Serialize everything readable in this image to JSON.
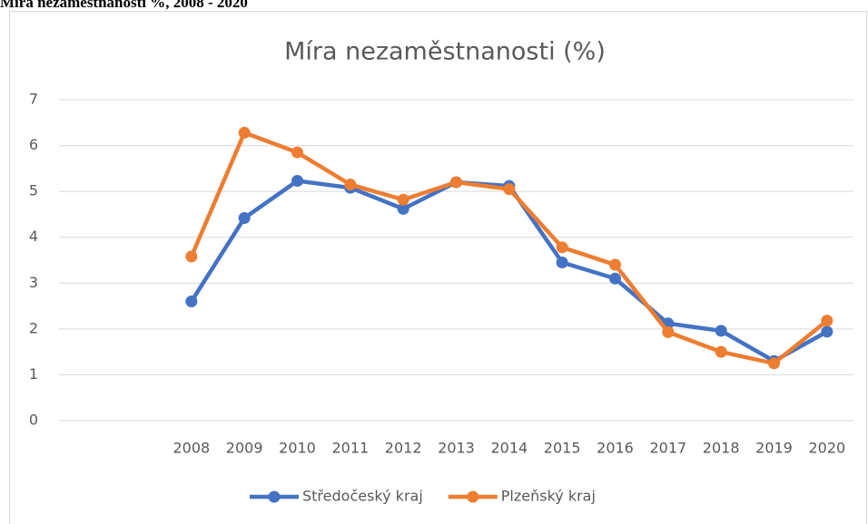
{
  "caption": "Míra nezaměstnanosti %, 2008 - 2020",
  "chart_data": {
    "type": "line",
    "title": "Míra nezaměstnanosti (%)",
    "categories": [
      null,
      null,
      "2008",
      "2009",
      "2010",
      "2011",
      "2012",
      "2013",
      "2014",
      "2015",
      "2016",
      "2017",
      "2018",
      "2019",
      "2020"
    ],
    "series": [
      {
        "name": "Středočeský kraj",
        "color": "#4472c4",
        "values": [
          null,
          null,
          2.6,
          4.42,
          5.23,
          5.08,
          4.62,
          5.2,
          5.12,
          3.45,
          3.1,
          2.12,
          1.96,
          1.3,
          1.94
        ]
      },
      {
        "name": "Plzeňský kraj",
        "color": "#ed7d31",
        "values": [
          null,
          null,
          3.58,
          6.28,
          5.85,
          5.15,
          4.82,
          5.2,
          5.05,
          3.78,
          3.4,
          1.93,
          1.5,
          1.25,
          2.18
        ]
      }
    ],
    "ylim": [
      0,
      7
    ],
    "yticks": [
      0,
      1,
      2,
      3,
      4,
      5,
      6,
      7
    ],
    "grid": true,
    "legend": "bottom"
  }
}
